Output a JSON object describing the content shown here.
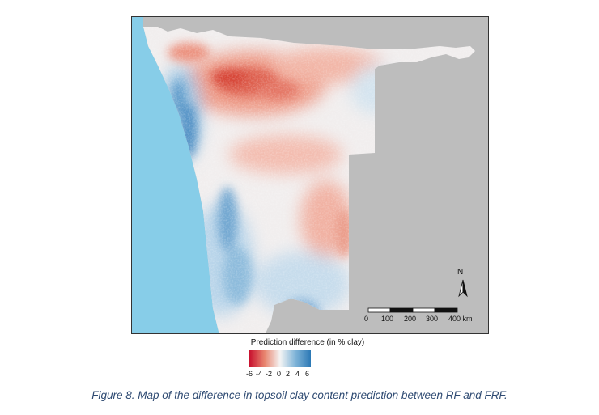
{
  "map": {
    "background_color": "#bdbdbd",
    "ocean_color": "#87cde8",
    "north_arrow": {
      "label": "N",
      "icon": "north-arrow-icon"
    },
    "scale_bar": {
      "ticks": [
        "0",
        "100",
        "200",
        "300",
        "400 km"
      ]
    }
  },
  "legend": {
    "title": "Prediction difference (in % clay)",
    "ticks": [
      "-6",
      "-4",
      "-2",
      "0",
      "2",
      "4",
      "6"
    ],
    "range": [
      -6,
      6
    ],
    "colors": {
      "low": "#c8102e",
      "mid": "#f4f4f4",
      "high": "#2b78b5"
    }
  },
  "caption": "Figure 8. Map of the difference in topsoil clay content prediction between RF and FRF."
}
